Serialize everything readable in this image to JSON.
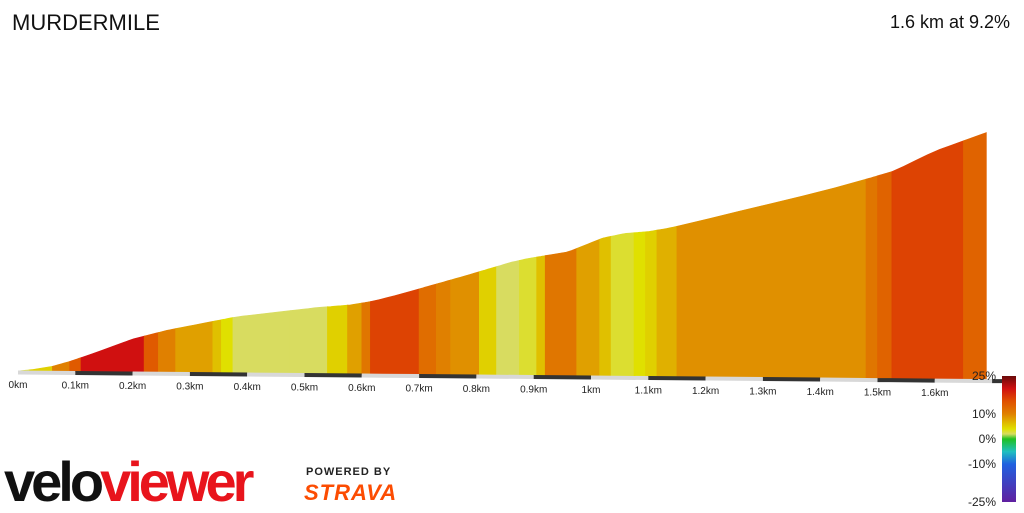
{
  "header": {
    "title": "MURDERMILE",
    "summary": "1.6 km at 9.2%"
  },
  "branding": {
    "logo_part1": "velo",
    "logo_part2": "viewer",
    "powered_by": "POWERED BY",
    "strava": "STRAVA"
  },
  "colors": {
    "steep_red": "#e02010",
    "orange_red": "#e05000",
    "orange": "#e08000",
    "amber": "#e0a000",
    "gold": "#e0b800",
    "yellow": "#e0e000",
    "pale_yellow": "#d8dc60"
  },
  "chart_data": {
    "type": "area",
    "title": "MURDERMILE",
    "xlabel": "",
    "ylabel": "",
    "x_unit": "km",
    "xlim": [
      0,
      1.72
    ],
    "x_ticks": [
      {
        "v": 0,
        "label": "0km"
      },
      {
        "v": 0.1,
        "label": "0.1km"
      },
      {
        "v": 0.2,
        "label": "0.2km"
      },
      {
        "v": 0.3,
        "label": "0.3km"
      },
      {
        "v": 0.4,
        "label": "0.4km"
      },
      {
        "v": 0.5,
        "label": "0.5km"
      },
      {
        "v": 0.6,
        "label": "0.6km"
      },
      {
        "v": 0.7,
        "label": "0.7km"
      },
      {
        "v": 0.8,
        "label": "0.8km"
      },
      {
        "v": 0.9,
        "label": "0.9km"
      },
      {
        "v": 1.0,
        "label": "1km"
      },
      {
        "v": 1.1,
        "label": "1.1km"
      },
      {
        "v": 1.2,
        "label": "1.2km"
      },
      {
        "v": 1.3,
        "label": "1.3km"
      },
      {
        "v": 1.4,
        "label": "1.4km"
      },
      {
        "v": 1.5,
        "label": "1.5km"
      },
      {
        "v": 1.6,
        "label": "1.6km"
      }
    ],
    "elevation_profile": [
      [
        0.0,
        0
      ],
      [
        0.03,
        2
      ],
      [
        0.06,
        5
      ],
      [
        0.09,
        10
      ],
      [
        0.14,
        20
      ],
      [
        0.2,
        33
      ],
      [
        0.26,
        42
      ],
      [
        0.32,
        49
      ],
      [
        0.38,
        56
      ],
      [
        0.45,
        61
      ],
      [
        0.52,
        66
      ],
      [
        0.58,
        69
      ],
      [
        0.62,
        73
      ],
      [
        0.66,
        79
      ],
      [
        0.72,
        89
      ],
      [
        0.78,
        99
      ],
      [
        0.82,
        106
      ],
      [
        0.86,
        113
      ],
      [
        0.89,
        117
      ],
      [
        0.93,
        121
      ],
      [
        0.96,
        124
      ],
      [
        0.99,
        131
      ],
      [
        1.02,
        138
      ],
      [
        1.06,
        143
      ],
      [
        1.1,
        145
      ],
      [
        1.13,
        148
      ],
      [
        1.17,
        153
      ],
      [
        1.25,
        165
      ],
      [
        1.35,
        179
      ],
      [
        1.45,
        194
      ],
      [
        1.53,
        208
      ],
      [
        1.6,
        228
      ],
      [
        1.69,
        247
      ]
    ],
    "gradient_segments": [
      {
        "x0": 0.0,
        "x1": 0.02,
        "grade": 3
      },
      {
        "x0": 0.02,
        "x1": 0.06,
        "grade": 5
      },
      {
        "x0": 0.06,
        "x1": 0.09,
        "grade": 10
      },
      {
        "x0": 0.09,
        "x1": 0.11,
        "grade": 14
      },
      {
        "x0": 0.11,
        "x1": 0.22,
        "grade": 20
      },
      {
        "x0": 0.22,
        "x1": 0.245,
        "grade": 14
      },
      {
        "x0": 0.245,
        "x1": 0.275,
        "grade": 10
      },
      {
        "x0": 0.275,
        "x1": 0.34,
        "grade": 8
      },
      {
        "x0": 0.34,
        "x1": 0.355,
        "grade": 6
      },
      {
        "x0": 0.355,
        "x1": 0.375,
        "grade": 4
      },
      {
        "x0": 0.375,
        "x1": 0.475,
        "grade": 2
      },
      {
        "x0": 0.475,
        "x1": 0.54,
        "grade": 2
      },
      {
        "x0": 0.54,
        "x1": 0.575,
        "grade": 5
      },
      {
        "x0": 0.575,
        "x1": 0.6,
        "grade": 8
      },
      {
        "x0": 0.6,
        "x1": 0.615,
        "grade": 11
      },
      {
        "x0": 0.615,
        "x1": 0.7,
        "grade": 16
      },
      {
        "x0": 0.7,
        "x1": 0.73,
        "grade": 12
      },
      {
        "x0": 0.73,
        "x1": 0.755,
        "grade": 10
      },
      {
        "x0": 0.755,
        "x1": 0.805,
        "grade": 9
      },
      {
        "x0": 0.805,
        "x1": 0.835,
        "grade": 5
      },
      {
        "x0": 0.835,
        "x1": 0.875,
        "grade": 2
      },
      {
        "x0": 0.875,
        "x1": 0.905,
        "grade": 3
      },
      {
        "x0": 0.905,
        "x1": 0.92,
        "grade": 6
      },
      {
        "x0": 0.92,
        "x1": 0.975,
        "grade": 11
      },
      {
        "x0": 0.975,
        "x1": 1.015,
        "grade": 8
      },
      {
        "x0": 1.015,
        "x1": 1.035,
        "grade": 6
      },
      {
        "x0": 1.035,
        "x1": 1.075,
        "grade": 3
      },
      {
        "x0": 1.075,
        "x1": 1.095,
        "grade": 4
      },
      {
        "x0": 1.095,
        "x1": 1.115,
        "grade": 5
      },
      {
        "x0": 1.115,
        "x1": 1.15,
        "grade": 7
      },
      {
        "x0": 1.15,
        "x1": 1.48,
        "grade": 9
      },
      {
        "x0": 1.48,
        "x1": 1.5,
        "grade": 11
      },
      {
        "x0": 1.5,
        "x1": 1.525,
        "grade": 13
      },
      {
        "x0": 1.525,
        "x1": 1.65,
        "grade": 16
      },
      {
        "x0": 1.65,
        "x1": 1.69,
        "grade": 13
      }
    ],
    "colorbar": {
      "labels": [
        "25%",
        "10%",
        "0%",
        "-10%",
        "-25%"
      ],
      "values": [
        25,
        10,
        0,
        -10,
        -25
      ],
      "stops": [
        {
          "v": 25,
          "color": "#6a0a0a"
        },
        {
          "v": 20,
          "color": "#d01010"
        },
        {
          "v": 15,
          "color": "#e05000"
        },
        {
          "v": 10,
          "color": "#e08000"
        },
        {
          "v": 7,
          "color": "#e0b000"
        },
        {
          "v": 4,
          "color": "#e0e000"
        },
        {
          "v": 2,
          "color": "#d8dc60"
        },
        {
          "v": 0,
          "color": "#20c020"
        },
        {
          "v": -5,
          "color": "#20c0c0"
        },
        {
          "v": -10,
          "color": "#2060e0"
        },
        {
          "v": -25,
          "color": "#6020a0"
        }
      ]
    }
  }
}
